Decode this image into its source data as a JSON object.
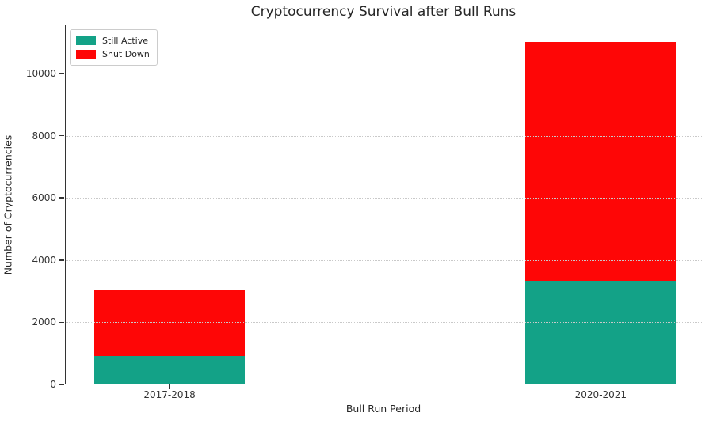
{
  "chart_data": {
    "type": "bar",
    "stacked": true,
    "title": "Cryptocurrency Survival after Bull Runs",
    "xlabel": "Bull Run Period",
    "ylabel": "Number of Cryptocurrencies",
    "categories": [
      "2017-2018",
      "2020-2021"
    ],
    "series": [
      {
        "name": "Still Active",
        "color": "#13a287",
        "values": [
          900,
          3300
        ]
      },
      {
        "name": "Shut Down",
        "color": "#fe0606",
        "values": [
          2100,
          7700
        ]
      }
    ],
    "totals": [
      3000,
      11000
    ],
    "ylim": [
      0,
      11550
    ],
    "yticks": [
      0,
      2000,
      4000,
      6000,
      8000,
      10000
    ],
    "grid": "dotted",
    "grid_color": "#c9c9c9",
    "axis_color": "#333333",
    "text_color": "#262626",
    "legend_position": "upper-left"
  }
}
